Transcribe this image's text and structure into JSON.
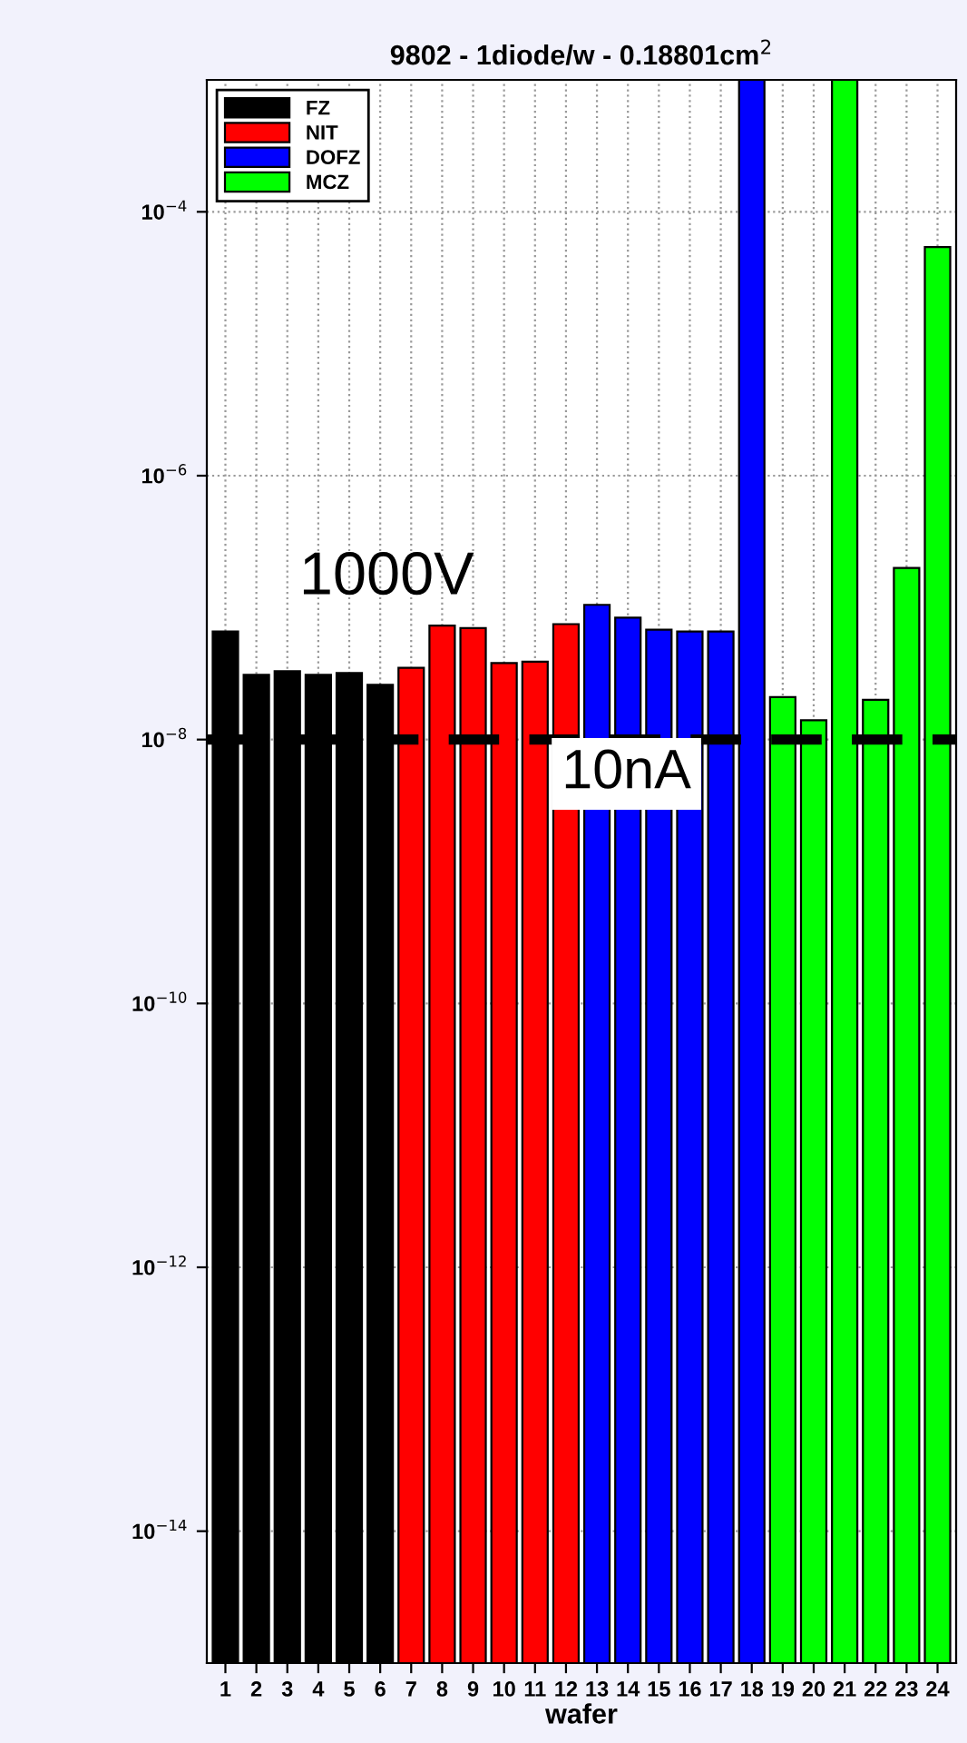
{
  "chart_data": {
    "type": "bar",
    "title": "9802 - 1diode/w - 0.18801cm$^{2}$",
    "xlabel": "wafer",
    "categories": [
      "1",
      "2",
      "3",
      "4",
      "5",
      "6",
      "7",
      "8",
      "9",
      "10",
      "11",
      "12",
      "13",
      "14",
      "15",
      "16",
      "17",
      "18",
      "19",
      "20",
      "21",
      "22",
      "23",
      "24"
    ],
    "series": [
      {
        "name": "FZ",
        "color": "#000000",
        "values": [
          6.6e-08,
          3.1e-08,
          3.3e-08,
          3.1e-08,
          3.2e-08,
          2.6e-08,
          null,
          null,
          null,
          null,
          null,
          null,
          null,
          null,
          null,
          null,
          null,
          null,
          null,
          null,
          null,
          null,
          null,
          null
        ]
      },
      {
        "name": "NIT",
        "color": "#ff0000",
        "values": [
          null,
          null,
          null,
          null,
          null,
          null,
          3.5e-08,
          7.3e-08,
          7e-08,
          3.8e-08,
          3.9e-08,
          7.5e-08,
          null,
          null,
          null,
          null,
          null,
          null,
          null,
          null,
          null,
          null,
          null,
          null
        ]
      },
      {
        "name": "DOFZ",
        "color": "#0000ff",
        "values": [
          null,
          null,
          null,
          null,
          null,
          null,
          null,
          null,
          null,
          null,
          null,
          null,
          1.05e-07,
          8.4e-08,
          6.8e-08,
          6.6e-08,
          6.6e-08,
          0.001,
          null,
          null,
          null,
          null,
          null,
          null
        ]
      },
      {
        "name": "MCZ",
        "color": "#00ff00",
        "values": [
          null,
          null,
          null,
          null,
          null,
          null,
          null,
          null,
          null,
          null,
          null,
          null,
          null,
          null,
          null,
          null,
          null,
          null,
          2.1e-08,
          1.4e-08,
          0.001,
          2e-08,
          2e-07,
          5.4e-05
        ]
      }
    ],
    "log": "y",
    "ylim": [
      1e-15,
      0.001
    ],
    "yticks": [
      {
        "value": 1e-14,
        "label": "10$^{−14}$"
      },
      {
        "value": 1e-12,
        "label": "10$^{−12}$"
      },
      {
        "value": 1e-10,
        "label": "10$^{−10}$"
      },
      {
        "value": 1e-08,
        "label": "10$^{−8}$"
      },
      {
        "value": 1e-06,
        "label": "10$^{−6}$"
      },
      {
        "value": 0.0001,
        "label": "10$^{−4}$"
      }
    ],
    "grid": true,
    "legend": "top left",
    "ref_lines": [
      {
        "axis": "y",
        "value": 1e-08,
        "label": "10nA",
        "color": "#000000",
        "line_style": "dashed"
      }
    ],
    "annotations": [
      "1000V"
    ]
  }
}
